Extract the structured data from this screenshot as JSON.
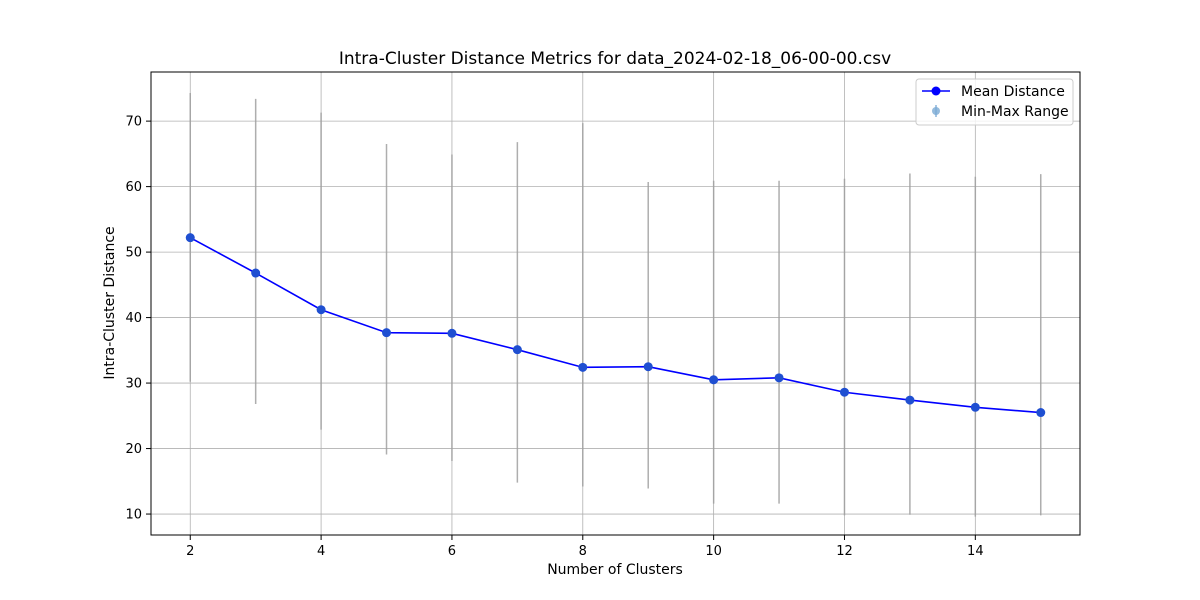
{
  "chart_data": {
    "type": "line",
    "title": "Intra-Cluster Distance Metrics for data_2024-02-18_06-00-00.csv",
    "xlabel": "Number of Clusters",
    "ylabel": "Intra-Cluster Distance",
    "xlim": [
      1.4,
      15.6
    ],
    "ylim": [
      6.8,
      77.5
    ],
    "xticks": [
      2,
      4,
      6,
      8,
      10,
      12,
      14
    ],
    "yticks": [
      10,
      20,
      30,
      40,
      50,
      60,
      70
    ],
    "grid": true,
    "legend_position": "top-right",
    "x": [
      2,
      3,
      4,
      5,
      6,
      7,
      8,
      9,
      10,
      11,
      12,
      13,
      14,
      15
    ],
    "series": [
      {
        "name": "Mean Distance",
        "color": "#0000ff",
        "marker_color": "#1f4fd1",
        "values": [
          52.2,
          46.8,
          41.2,
          37.7,
          37.6,
          35.1,
          32.4,
          32.5,
          30.5,
          30.8,
          28.6,
          27.4,
          26.3,
          25.5
        ]
      }
    ],
    "range_series": {
      "name": "Min-Max Range",
      "color": "#a0a0a0",
      "min": [
        30.2,
        26.8,
        22.9,
        19.1,
        18.1,
        14.8,
        14.2,
        13.9,
        11.6,
        11.6,
        9.8,
        9.9,
        9.6,
        9.8
      ],
      "max": [
        74.3,
        73.4,
        71.3,
        66.5,
        64.9,
        66.8,
        69.7,
        60.7,
        60.9,
        60.9,
        61.2,
        62.0,
        61.5,
        61.9
      ]
    }
  }
}
